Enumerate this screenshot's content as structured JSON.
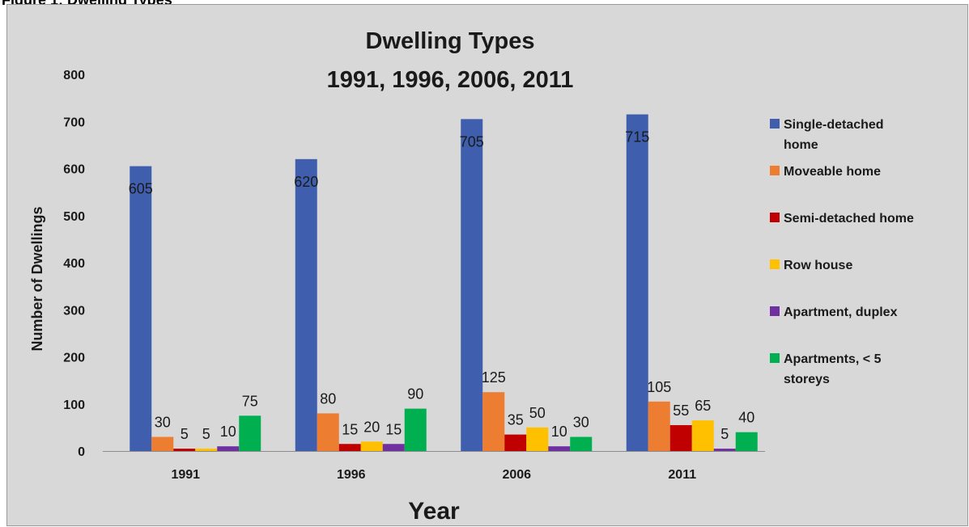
{
  "caption": "Figure 1: Dwelling Types",
  "chart_data": {
    "type": "bar",
    "title": [
      "Dwelling Types",
      "1991, 1996, 2006, 2011"
    ],
    "xlabel": "Year",
    "ylabel": "Number of Dwellings",
    "categories": [
      "1991",
      "1996",
      "2006",
      "2011"
    ],
    "ylim": [
      0,
      800
    ],
    "yticks": [
      0,
      100,
      200,
      300,
      400,
      500,
      600,
      700,
      800
    ],
    "grid": false,
    "legend_position": "right",
    "series": [
      {
        "name": "Single-detached home",
        "legend_lines": [
          "Single-detached",
          "home"
        ],
        "color": "#3f5fae",
        "values": [
          605,
          620,
          705,
          715
        ]
      },
      {
        "name": "Moveable home",
        "legend_lines": [
          "Moveable home"
        ],
        "color": "#ed7d31",
        "values": [
          30,
          80,
          125,
          105
        ]
      },
      {
        "name": "Semi-detached home",
        "legend_lines": [
          "Semi-detached home"
        ],
        "color": "#c00000",
        "values": [
          5,
          15,
          35,
          55
        ]
      },
      {
        "name": "Row house",
        "legend_lines": [
          "Row house"
        ],
        "color": "#ffc000",
        "values": [
          5,
          20,
          50,
          65
        ]
      },
      {
        "name": "Apartment, duplex",
        "legend_lines": [
          "Apartment, duplex"
        ],
        "color": "#7030a0",
        "values": [
          10,
          15,
          10,
          5
        ]
      },
      {
        "name": "Apartments, < 5 storeys",
        "legend_lines": [
          "Apartments, < 5",
          "storeys"
        ],
        "color": "#00b050",
        "values": [
          75,
          90,
          30,
          40
        ]
      }
    ]
  }
}
